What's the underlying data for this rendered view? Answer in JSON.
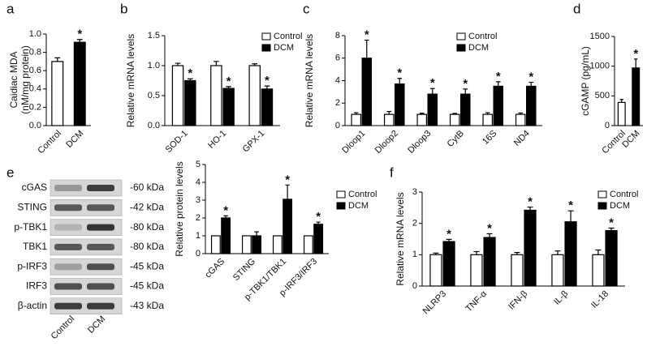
{
  "chart_data": [
    {
      "type": "bar",
      "panel": "a",
      "ylabel": [
        "Caidiac MDA",
        "(nM/mg protein)"
      ],
      "categories": [
        "Control",
        "DCM"
      ],
      "values": [
        0.7,
        0.91
      ],
      "errors": [
        0.04,
        0.03
      ],
      "colors": [
        "#ffffff",
        "#000000"
      ],
      "annotations": [
        null,
        "*"
      ],
      "ylim": [
        0,
        1.0
      ],
      "yticks": [
        {
          "value": 0,
          "label": "0.0"
        },
        0.2,
        0.4,
        0.6,
        0.8,
        {
          "value": 1.0,
          "label": "1.0"
        }
      ]
    },
    {
      "type": "bar",
      "panel": "b",
      "ylabel": "Relative mRNA levels",
      "categories": [
        "SOD-1",
        "HO-1",
        "GPX-1"
      ],
      "series": [
        {
          "name": "Control",
          "color": "#ffffff",
          "values": [
            1.0,
            1.0,
            1.0
          ],
          "errors": [
            0.04,
            0.07,
            0.03
          ]
        },
        {
          "name": "DCM",
          "color": "#000000",
          "values": [
            0.75,
            0.62,
            0.61
          ],
          "errors": [
            0.03,
            0.03,
            0.05
          ],
          "annotations": [
            "*",
            "*",
            "*"
          ]
        }
      ],
      "ylim": [
        0,
        1.5
      ],
      "yticks": [
        {
          "value": 0,
          "label": "0.0"
        },
        0.5,
        {
          "value": 1.0,
          "label": "1.0"
        },
        1.5
      ]
    },
    {
      "type": "bar",
      "panel": "c",
      "ylabel": "Relative mRNA levels",
      "categories": [
        "Dloop1",
        "Dloop2",
        "Dloop3",
        "CytB",
        "16S",
        "ND4"
      ],
      "series": [
        {
          "name": "Control",
          "color": "#ffffff",
          "values": [
            1,
            1,
            1,
            1,
            1,
            1
          ],
          "errors": [
            0.15,
            0.25,
            0.1,
            0.08,
            0.15,
            0.12
          ]
        },
        {
          "name": "DCM",
          "color": "#000000",
          "values": [
            6.0,
            3.7,
            2.8,
            2.8,
            3.5,
            3.5
          ],
          "errors": [
            1.6,
            0.5,
            0.5,
            0.45,
            0.4,
            0.35
          ],
          "annotations": [
            "*",
            "*",
            "*",
            "*",
            "*",
            "*"
          ]
        }
      ],
      "ylim": [
        0,
        8
      ],
      "yticks": [
        0,
        2,
        4,
        6,
        8
      ]
    },
    {
      "type": "bar",
      "panel": "d",
      "ylabel": "cGAMP (pg/mL)",
      "categories": [
        "Control",
        "DCM"
      ],
      "values": [
        390,
        970
      ],
      "errors": [
        50,
        150
      ],
      "colors": [
        "#ffffff",
        "#000000"
      ],
      "annotations": [
        null,
        "*"
      ],
      "ylim": [
        0,
        1500
      ],
      "yticks": [
        0,
        500,
        1000,
        1500
      ]
    },
    {
      "type": "bar",
      "ylabel": "Relative protein levels",
      "categories": [
        "cGAS",
        "STING",
        "p-TBK1/TBK1",
        "p-IRF3/IRF3"
      ],
      "series": [
        {
          "name": "Control",
          "color": "#ffffff",
          "values": [
            1,
            1,
            1,
            1
          ]
        },
        {
          "name": "DCM",
          "color": "#000000",
          "values": [
            2.0,
            1.0,
            3.05,
            1.65
          ],
          "errors": [
            0.12,
            0.22,
            0.8,
            0.12
          ],
          "annotations": [
            "*",
            null,
            "*",
            "*"
          ]
        }
      ],
      "ylim": [
        0,
        5
      ],
      "yticks": [
        0,
        1,
        2,
        3,
        4,
        5
      ]
    },
    {
      "type": "bar",
      "panel": "f",
      "ylabel": "Relative mRNA levels",
      "categories": [
        "NLRP3",
        "TNF-α",
        "IFN-β",
        "IL-β",
        "IL-18"
      ],
      "series": [
        {
          "name": "Control",
          "color": "#ffffff",
          "values": [
            1,
            1,
            1,
            1,
            1
          ],
          "errors": [
            0.05,
            0.1,
            0.07,
            0.12,
            0.15
          ]
        },
        {
          "name": "DCM",
          "color": "#000000",
          "values": [
            1.42,
            1.55,
            2.42,
            2.05,
            1.77
          ],
          "errors": [
            0.07,
            0.12,
            0.1,
            0.35,
            0.08
          ],
          "annotations": [
            "*",
            "*",
            "*",
            "*",
            "*"
          ]
        }
      ],
      "ylim": [
        0,
        3
      ],
      "yticks": [
        0,
        1,
        2,
        3
      ]
    }
  ],
  "blot": {
    "panel": "e",
    "lanes": [
      "Control",
      "DCM"
    ],
    "rows": [
      {
        "protein": "cGAS",
        "size": "-60 kDa"
      },
      {
        "protein": "STING",
        "size": "-42 kDa"
      },
      {
        "protein": "p-TBK1",
        "size": "-80 kDa"
      },
      {
        "protein": "TBK1",
        "size": "-80 kDa"
      },
      {
        "protein": "p-IRF3",
        "size": "-45 kDa"
      },
      {
        "protein": "IRF3",
        "size": "-45 kDa"
      },
      {
        "protein": "β-actin",
        "size": "-43 kDa"
      }
    ]
  }
}
